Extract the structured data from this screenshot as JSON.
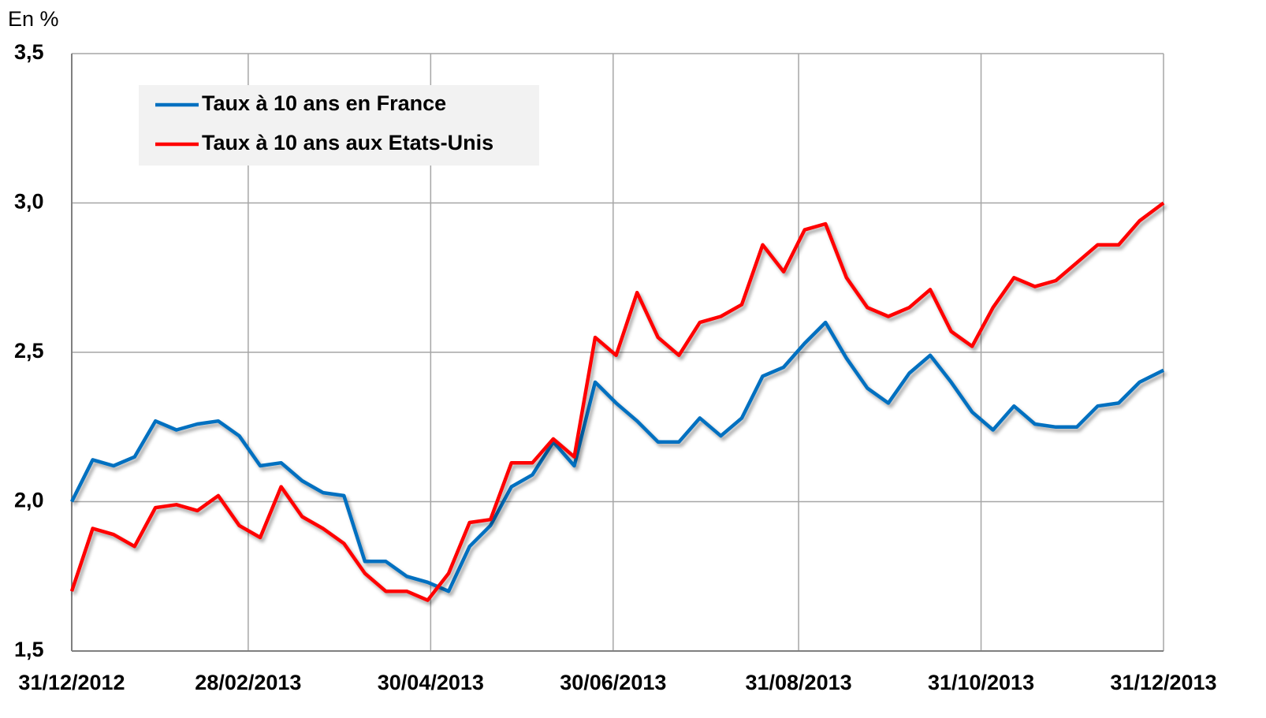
{
  "chart_data": {
    "type": "line",
    "y_axis_label": "En %",
    "x": [
      "31/12/2012",
      "07/01/2013",
      "14/01/2013",
      "21/01/2013",
      "28/01/2013",
      "04/02/2013",
      "11/02/2013",
      "18/02/2013",
      "25/02/2013",
      "04/03/2013",
      "11/03/2013",
      "18/03/2013",
      "25/03/2013",
      "01/04/2013",
      "08/04/2013",
      "15/04/2013",
      "22/04/2013",
      "29/04/2013",
      "06/05/2013",
      "13/05/2013",
      "20/05/2013",
      "27/05/2013",
      "03/06/2013",
      "10/06/2013",
      "17/06/2013",
      "24/06/2013",
      "01/07/2013",
      "08/07/2013",
      "15/07/2013",
      "22/07/2013",
      "29/07/2013",
      "05/08/2013",
      "12/08/2013",
      "19/08/2013",
      "26/08/2013",
      "02/09/2013",
      "09/09/2013",
      "16/09/2013",
      "23/09/2013",
      "30/09/2013",
      "07/10/2013",
      "14/10/2013",
      "21/10/2013",
      "28/10/2013",
      "04/11/2013",
      "11/11/2013",
      "18/11/2013",
      "25/11/2013",
      "02/12/2013",
      "09/12/2013",
      "16/12/2013",
      "23/12/2013",
      "31/12/2013"
    ],
    "series": [
      {
        "name": "Taux à 10 ans en France",
        "color": "#0070c0",
        "values": [
          2.0,
          2.14,
          2.12,
          2.15,
          2.27,
          2.24,
          2.26,
          2.27,
          2.22,
          2.12,
          2.13,
          2.07,
          2.03,
          2.02,
          1.8,
          1.8,
          1.75,
          1.73,
          1.7,
          1.85,
          1.92,
          2.05,
          2.09,
          2.2,
          2.12,
          2.4,
          2.33,
          2.27,
          2.2,
          2.2,
          2.28,
          2.22,
          2.28,
          2.42,
          2.45,
          2.53,
          2.6,
          2.48,
          2.38,
          2.33,
          2.43,
          2.49,
          2.4,
          2.3,
          2.24,
          2.32,
          2.26,
          2.25,
          2.25,
          2.32,
          2.33,
          2.4,
          2.44
        ]
      },
      {
        "name": "Taux à 10 ans aux Etats-Unis",
        "color": "#ff0000",
        "values": [
          1.7,
          1.91,
          1.89,
          1.85,
          1.98,
          1.99,
          1.97,
          2.02,
          1.92,
          1.88,
          2.05,
          1.95,
          1.91,
          1.86,
          1.76,
          1.7,
          1.7,
          1.67,
          1.76,
          1.93,
          1.94,
          2.13,
          2.13,
          2.21,
          2.15,
          2.55,
          2.49,
          2.7,
          2.55,
          2.49,
          2.6,
          2.62,
          2.66,
          2.86,
          2.77,
          2.91,
          2.93,
          2.75,
          2.65,
          2.62,
          2.65,
          2.71,
          2.57,
          2.52,
          2.65,
          2.75,
          2.72,
          2.74,
          2.8,
          2.86,
          2.86,
          2.94,
          3.0
        ]
      }
    ],
    "xlim": [
      "31/12/2012",
      "31/12/2013"
    ],
    "xticks": [
      "31/12/2012",
      "28/02/2013",
      "30/04/2013",
      "30/06/2013",
      "31/08/2013",
      "31/10/2013",
      "31/12/2013"
    ],
    "ylim": [
      1.5,
      3.5
    ],
    "yticks": [
      {
        "value": 1.5,
        "label": "1,5"
      },
      {
        "value": 2.0,
        "label": "2,0"
      },
      {
        "value": 2.5,
        "label": "2,5"
      },
      {
        "value": 3.0,
        "label": "3,0"
      },
      {
        "value": 3.5,
        "label": "3,5"
      }
    ],
    "grid": true,
    "legend": "upper-left"
  }
}
